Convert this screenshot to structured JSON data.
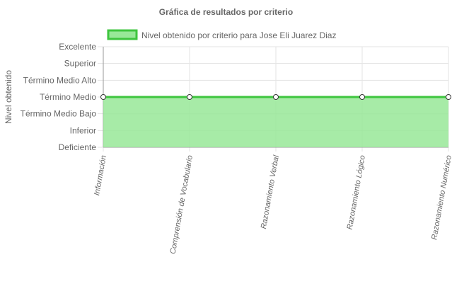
{
  "chart_data": {
    "type": "area",
    "title": "Gráfica de resultados por criterio",
    "ylabel": "Nivel obtenido",
    "xlabel": "",
    "levels": [
      "Deficiente",
      "Inferior",
      "Término Medio Bajo",
      "Término Medio",
      "Término Medio Alto",
      "Superior",
      "Excelente"
    ],
    "categories": [
      "Información",
      "Comprensión de Vocabulario",
      "Razonamiento Verbal",
      "Razonamiento Lógico",
      "Razonamiento Numérico"
    ],
    "series": [
      {
        "name": "Nivel obtenido por criterio para Jose Eli Juarez Diaz",
        "values": [
          "Término Medio",
          "Término Medio",
          "Término Medio",
          "Término Medio",
          "Término Medio"
        ]
      }
    ],
    "legend_position": "top",
    "grid": true,
    "colors": {
      "line": "#3ec53e",
      "fill": "#98e898",
      "grid": "#e3e3e3",
      "axis": "#999999",
      "text": "#666666"
    }
  }
}
